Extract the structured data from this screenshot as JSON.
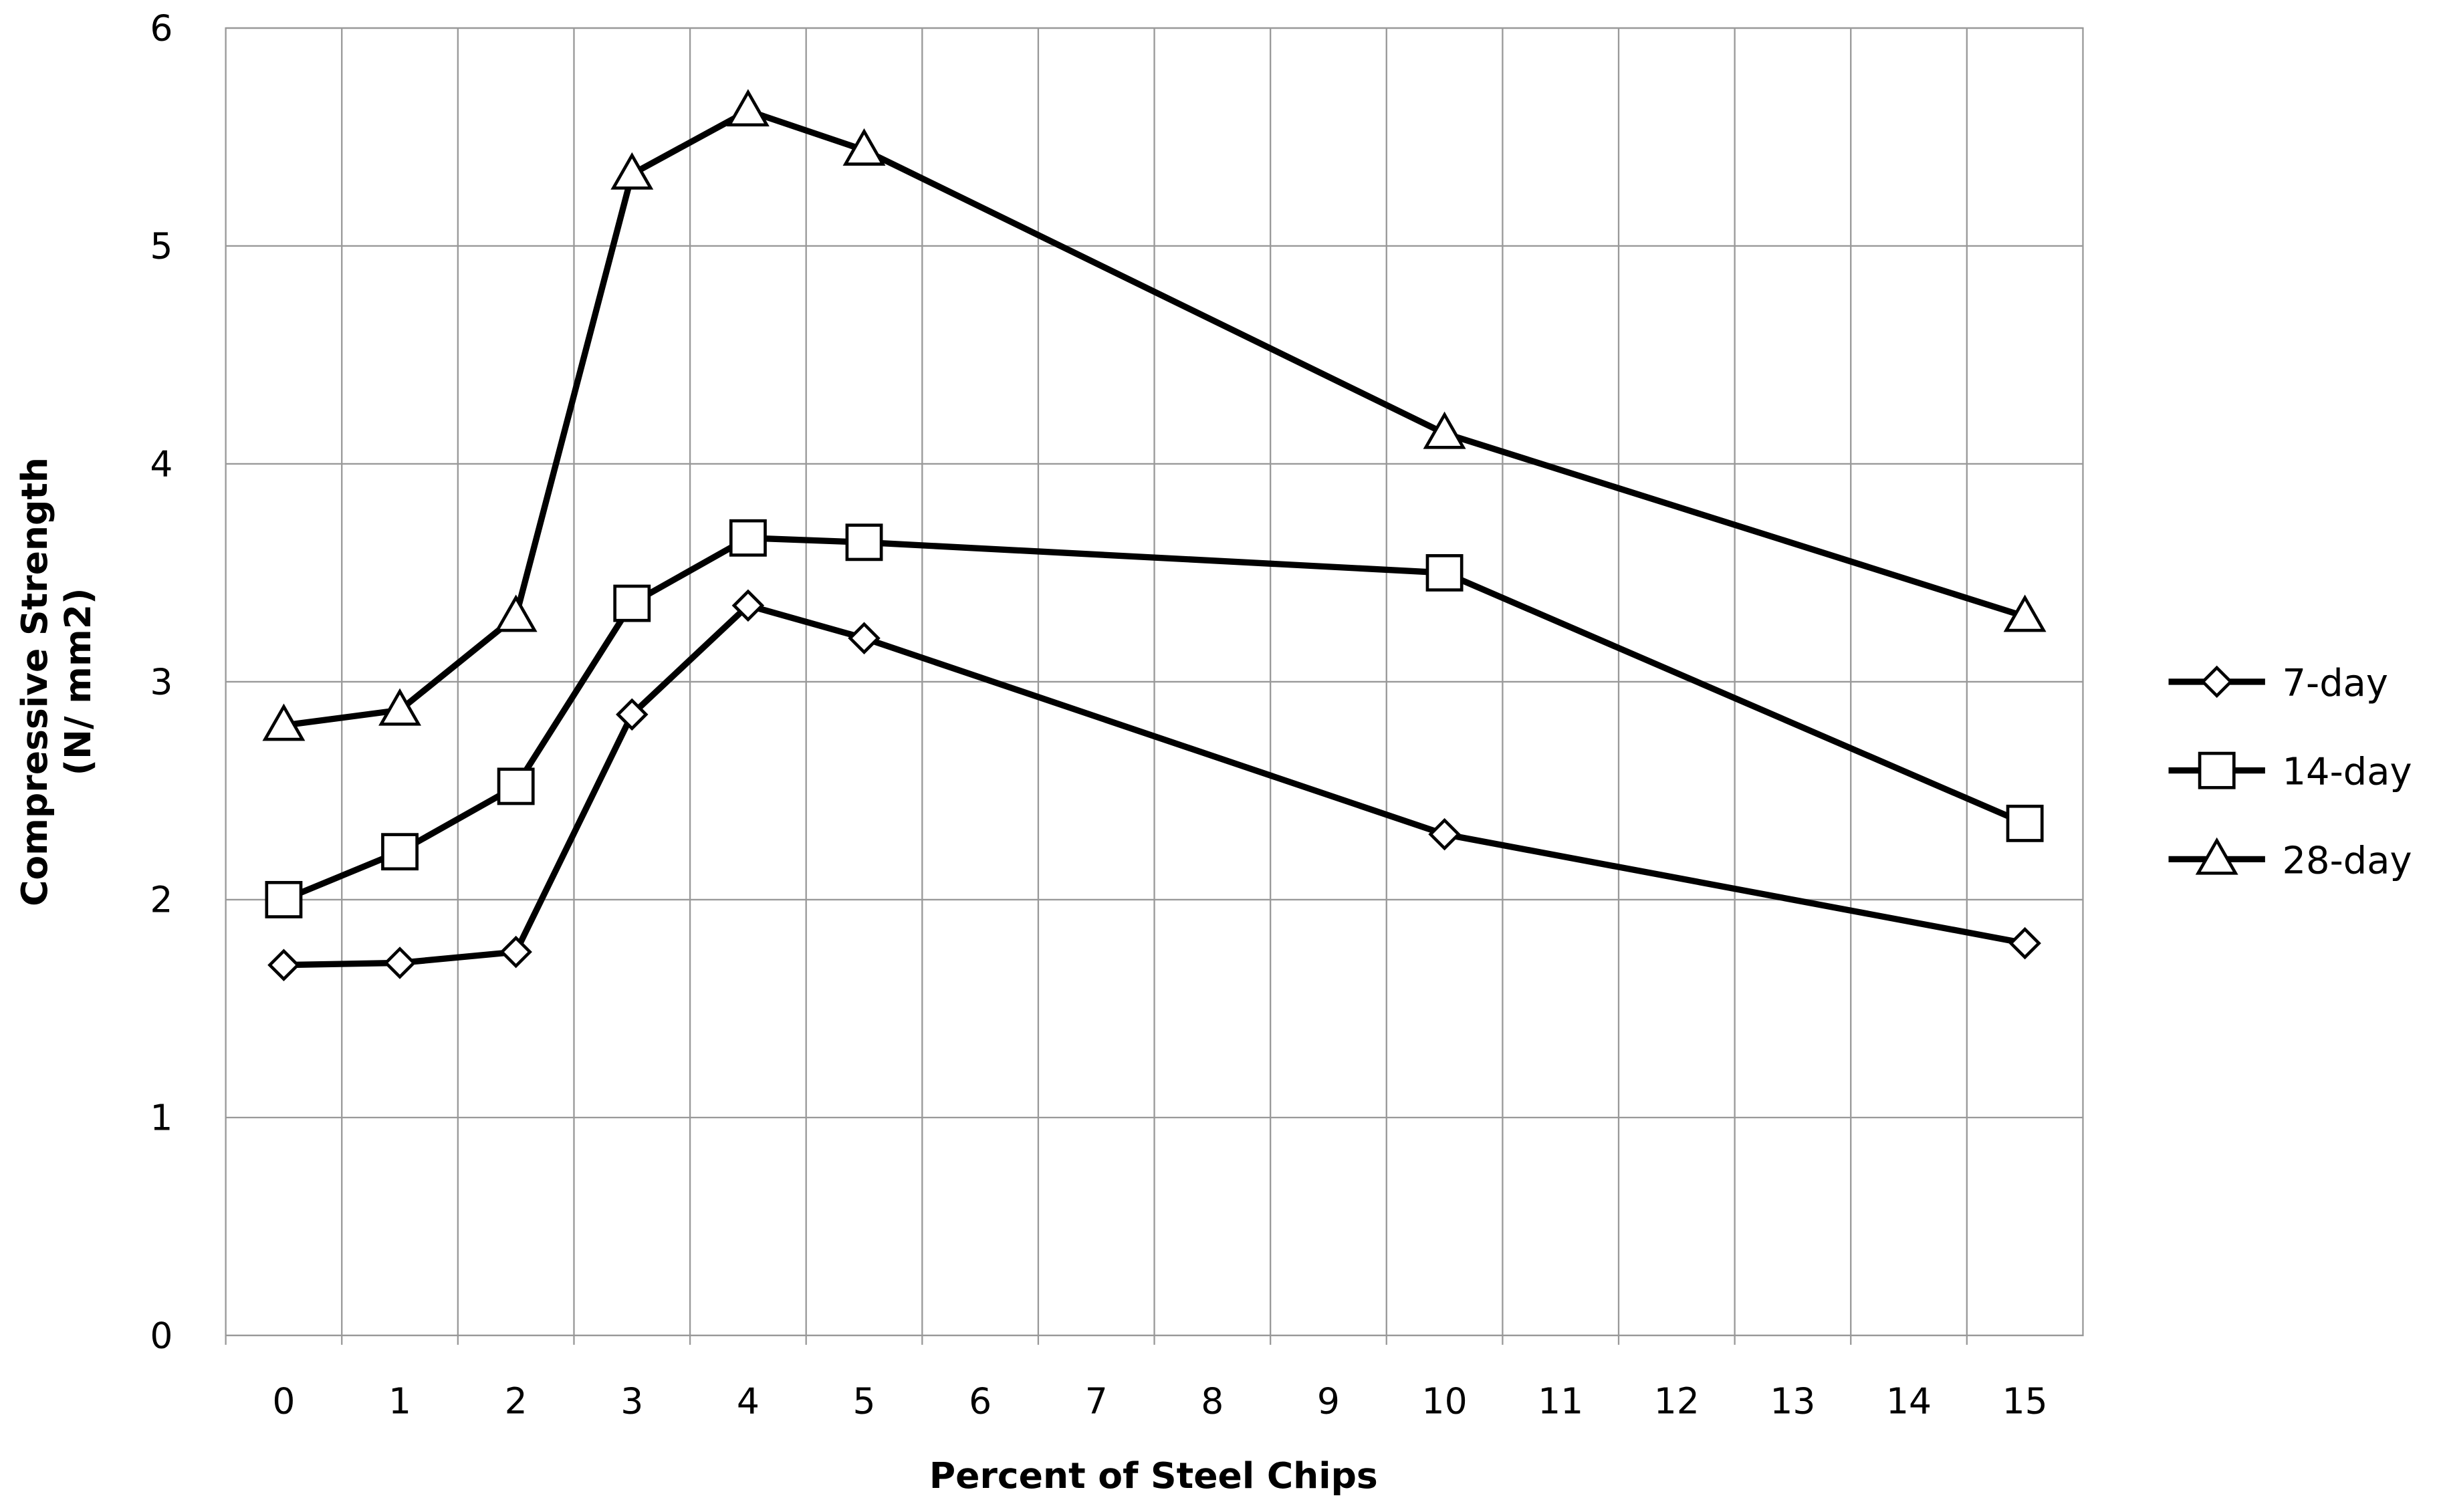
{
  "chart_data": {
    "type": "line",
    "xlabel": "Percent of Steel Chips",
    "ylabel": [
      "Compressive Strength",
      "(N/ mm2)"
    ],
    "x": [
      0,
      1,
      2,
      3,
      4,
      5,
      10,
      15
    ],
    "series": [
      {
        "name": "7-day",
        "color": "#000000",
        "marker": "diamond",
        "values": [
          1.7,
          1.71,
          1.76,
          2.85,
          3.35,
          3.2,
          2.3,
          1.8
        ]
      },
      {
        "name": "14-day",
        "color": "#000000",
        "marker": "square",
        "values": [
          2.0,
          2.22,
          2.52,
          3.36,
          3.66,
          3.64,
          3.5,
          2.35
        ]
      },
      {
        "name": "28-day",
        "color": "#000000",
        "marker": "triangle",
        "values": [
          2.8,
          2.87,
          3.3,
          5.33,
          5.62,
          5.44,
          4.14,
          3.3
        ]
      }
    ],
    "xlim": [
      -0.5,
      15.5
    ],
    "xticks": [
      0,
      1,
      2,
      3,
      4,
      5,
      6,
      7,
      8,
      9,
      10,
      11,
      12,
      13,
      14,
      15
    ],
    "ylim": [
      0,
      6
    ],
    "yticks": [
      0,
      1,
      2,
      3,
      4,
      5,
      6
    ],
    "grid": true,
    "legend": "right"
  }
}
